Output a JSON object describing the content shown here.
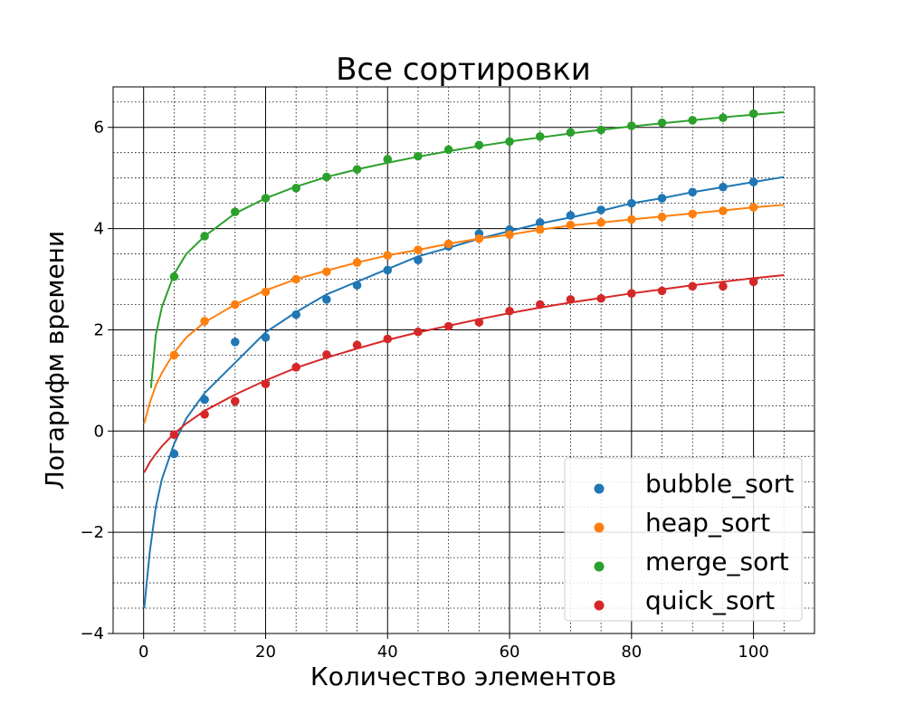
{
  "chart_data": {
    "type": "scatter",
    "title": "Все сортировки",
    "xlabel": "Количество элементов",
    "ylabel": "Логарифм времени",
    "xlim": [
      -5,
      110
    ],
    "ylim": [
      -4,
      6.8
    ],
    "x_ticks": [
      0,
      20,
      40,
      60,
      80,
      100
    ],
    "y_ticks": [
      -4,
      -2,
      0,
      2,
      4,
      6
    ],
    "x_tick_labels": [
      "0",
      "20",
      "40",
      "60",
      "80",
      "100"
    ],
    "y_tick_labels": [
      "−4",
      "−2",
      "0",
      "2",
      "4",
      "6"
    ],
    "grid": "major solid, minor dotted",
    "legend_position": "lower-right",
    "series": [
      {
        "name": "bubble_sort",
        "color": "#1f77b4",
        "points": [
          [
            5,
            -0.45
          ],
          [
            10,
            0.62
          ],
          [
            15,
            1.76
          ],
          [
            20,
            1.85
          ],
          [
            25,
            2.3
          ],
          [
            30,
            2.6
          ],
          [
            35,
            2.88
          ],
          [
            40,
            3.18
          ],
          [
            45,
            3.38
          ],
          [
            50,
            3.65
          ],
          [
            55,
            3.9
          ],
          [
            60,
            3.98
          ],
          [
            65,
            4.12
          ],
          [
            70,
            4.26
          ],
          [
            75,
            4.37
          ],
          [
            80,
            4.5
          ],
          [
            85,
            4.6
          ],
          [
            90,
            4.72
          ],
          [
            95,
            4.82
          ],
          [
            100,
            4.92
          ]
        ],
        "fit": [
          [
            0.1,
            -3.5
          ],
          [
            1,
            -2.4
          ],
          [
            2,
            -1.5
          ],
          [
            3,
            -0.95
          ],
          [
            5,
            -0.25
          ],
          [
            7,
            0.25
          ],
          [
            10,
            0.75
          ],
          [
            15,
            1.35
          ],
          [
            20,
            1.95
          ],
          [
            25,
            2.35
          ],
          [
            30,
            2.7
          ],
          [
            35,
            2.95
          ],
          [
            40,
            3.2
          ],
          [
            45,
            3.45
          ],
          [
            50,
            3.62
          ],
          [
            55,
            3.8
          ],
          [
            60,
            3.95
          ],
          [
            65,
            4.1
          ],
          [
            70,
            4.22
          ],
          [
            75,
            4.35
          ],
          [
            80,
            4.5
          ],
          [
            85,
            4.6
          ],
          [
            90,
            4.72
          ],
          [
            95,
            4.82
          ],
          [
            100,
            4.92
          ],
          [
            105,
            5.02
          ]
        ]
      },
      {
        "name": "heap_sort",
        "color": "#ff7f0e",
        "points": [
          [
            5,
            1.5
          ],
          [
            10,
            2.17
          ],
          [
            15,
            2.5
          ],
          [
            20,
            2.75
          ],
          [
            25,
            3.0
          ],
          [
            30,
            3.15
          ],
          [
            35,
            3.33
          ],
          [
            40,
            3.47
          ],
          [
            45,
            3.58
          ],
          [
            50,
            3.7
          ],
          [
            55,
            3.8
          ],
          [
            60,
            3.88
          ],
          [
            65,
            3.98
          ],
          [
            70,
            4.07
          ],
          [
            75,
            4.12
          ],
          [
            80,
            4.18
          ],
          [
            85,
            4.23
          ],
          [
            90,
            4.29
          ],
          [
            95,
            4.35
          ],
          [
            100,
            4.42
          ]
        ],
        "fit": [
          [
            0.1,
            0.15
          ],
          [
            1,
            0.55
          ],
          [
            2,
            0.9
          ],
          [
            3,
            1.15
          ],
          [
            5,
            1.55
          ],
          [
            7,
            1.85
          ],
          [
            10,
            2.15
          ],
          [
            15,
            2.5
          ],
          [
            20,
            2.78
          ],
          [
            25,
            3.0
          ],
          [
            30,
            3.17
          ],
          [
            35,
            3.33
          ],
          [
            40,
            3.47
          ],
          [
            45,
            3.58
          ],
          [
            50,
            3.7
          ],
          [
            55,
            3.8
          ],
          [
            60,
            3.88
          ],
          [
            65,
            3.98
          ],
          [
            70,
            4.06
          ],
          [
            75,
            4.12
          ],
          [
            80,
            4.18
          ],
          [
            85,
            4.24
          ],
          [
            90,
            4.3
          ],
          [
            95,
            4.36
          ],
          [
            100,
            4.42
          ],
          [
            105,
            4.47
          ]
        ]
      },
      {
        "name": "merge_sort",
        "color": "#2ca02c",
        "points": [
          [
            5,
            3.05
          ],
          [
            10,
            3.85
          ],
          [
            15,
            4.33
          ],
          [
            20,
            4.6
          ],
          [
            25,
            4.8
          ],
          [
            30,
            5.02
          ],
          [
            35,
            5.17
          ],
          [
            40,
            5.37
          ],
          [
            45,
            5.43
          ],
          [
            50,
            5.56
          ],
          [
            55,
            5.65
          ],
          [
            60,
            5.72
          ],
          [
            65,
            5.82
          ],
          [
            70,
            5.9
          ],
          [
            75,
            5.95
          ],
          [
            80,
            6.03
          ],
          [
            85,
            6.09
          ],
          [
            90,
            6.14
          ],
          [
            95,
            6.19
          ],
          [
            100,
            6.27
          ]
        ],
        "fit": [
          [
            1.2,
            0.85
          ],
          [
            2,
            1.9
          ],
          [
            3,
            2.45
          ],
          [
            5,
            3.1
          ],
          [
            7,
            3.5
          ],
          [
            10,
            3.85
          ],
          [
            15,
            4.3
          ],
          [
            20,
            4.6
          ],
          [
            25,
            4.83
          ],
          [
            30,
            5.02
          ],
          [
            35,
            5.17
          ],
          [
            40,
            5.3
          ],
          [
            45,
            5.42
          ],
          [
            50,
            5.53
          ],
          [
            55,
            5.63
          ],
          [
            60,
            5.72
          ],
          [
            65,
            5.8
          ],
          [
            70,
            5.88
          ],
          [
            75,
            5.95
          ],
          [
            80,
            6.02
          ],
          [
            85,
            6.08
          ],
          [
            90,
            6.14
          ],
          [
            95,
            6.2
          ],
          [
            100,
            6.25
          ],
          [
            105,
            6.3
          ]
        ]
      },
      {
        "name": "quick_sort",
        "color": "#d62728",
        "points": [
          [
            5,
            -0.07
          ],
          [
            10,
            0.33
          ],
          [
            15,
            0.59
          ],
          [
            20,
            0.93
          ],
          [
            25,
            1.26
          ],
          [
            30,
            1.51
          ],
          [
            35,
            1.7
          ],
          [
            40,
            1.82
          ],
          [
            45,
            1.96
          ],
          [
            50,
            2.07
          ],
          [
            55,
            2.15
          ],
          [
            60,
            2.37
          ],
          [
            65,
            2.5
          ],
          [
            70,
            2.6
          ],
          [
            75,
            2.62
          ],
          [
            80,
            2.72
          ],
          [
            85,
            2.77
          ],
          [
            90,
            2.86
          ],
          [
            95,
            2.86
          ],
          [
            100,
            2.95
          ]
        ],
        "fit": [
          [
            0.1,
            -0.82
          ],
          [
            1,
            -0.62
          ],
          [
            2,
            -0.45
          ],
          [
            3,
            -0.3
          ],
          [
            5,
            -0.05
          ],
          [
            7,
            0.15
          ],
          [
            10,
            0.4
          ],
          [
            15,
            0.72
          ],
          [
            20,
            1.0
          ],
          [
            25,
            1.25
          ],
          [
            30,
            1.45
          ],
          [
            35,
            1.63
          ],
          [
            40,
            1.8
          ],
          [
            45,
            1.95
          ],
          [
            50,
            2.08
          ],
          [
            55,
            2.21
          ],
          [
            60,
            2.33
          ],
          [
            65,
            2.44
          ],
          [
            70,
            2.54
          ],
          [
            75,
            2.63
          ],
          [
            80,
            2.72
          ],
          [
            85,
            2.8
          ],
          [
            90,
            2.88
          ],
          [
            95,
            2.95
          ],
          [
            100,
            3.02
          ],
          [
            105,
            3.08
          ]
        ]
      }
    ]
  }
}
